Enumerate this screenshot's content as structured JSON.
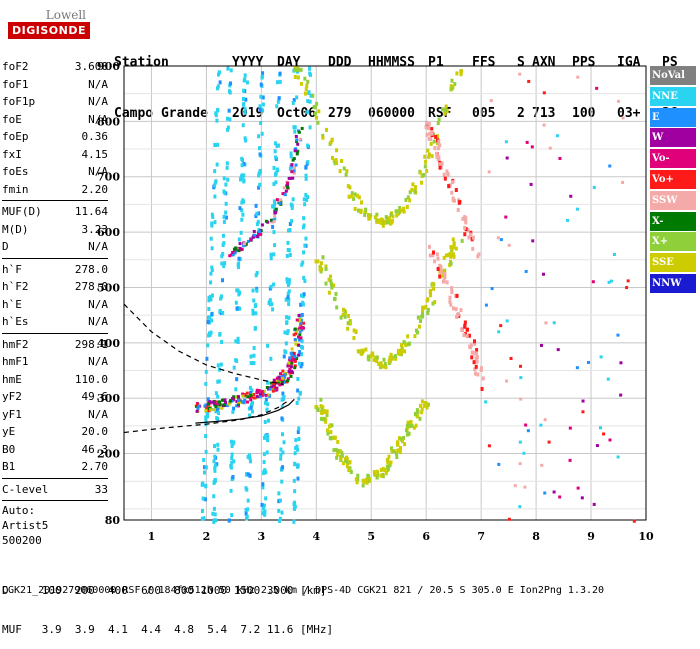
{
  "logo": {
    "line1": "Lowell",
    "line2": "DIGISONDE"
  },
  "header": {
    "row1": [
      "Station",
      "YYYY",
      "DAY",
      "DDD",
      "HHMMSS",
      "P1",
      "FFS",
      "S",
      "AXN",
      "PPS",
      "IGA",
      "PS"
    ],
    "row2": [
      "Campo Grande",
      "2019",
      "Oct06",
      "279",
      "060000",
      "RSF",
      "005",
      "2",
      "713",
      "100",
      "03+",
      "36"
    ]
  },
  "params_group1": [
    {
      "label": "foF2",
      "value": "3.600"
    },
    {
      "label": "foF1",
      "value": "N/A"
    },
    {
      "label": "foF1p",
      "value": "N/A"
    },
    {
      "label": "foE",
      "value": "N/A"
    },
    {
      "label": "foEp",
      "value": "0.36"
    },
    {
      "label": "fxI",
      "value": "4.15"
    },
    {
      "label": "foEs",
      "value": "N/A"
    },
    {
      "label": "fmin",
      "value": "2.20"
    }
  ],
  "params_group2": [
    {
      "label": "MUF(D)",
      "value": "11.64"
    },
    {
      "label": "M(D)",
      "value": "3.23"
    },
    {
      "label": "D",
      "value": "N/A"
    }
  ],
  "params_group3": [
    {
      "label": "h`F",
      "value": "278.0"
    },
    {
      "label": "h`F2",
      "value": "278.0"
    },
    {
      "label": "h`E",
      "value": "N/A"
    },
    {
      "label": "h`Es",
      "value": "N/A"
    }
  ],
  "params_group4": [
    {
      "label": "hmF2",
      "value": "298.1"
    },
    {
      "label": "hmF1",
      "value": "N/A"
    },
    {
      "label": "hmE",
      "value": "110.0"
    },
    {
      "label": "yF2",
      "value": "49.6"
    },
    {
      "label": "yF1",
      "value": "N/A"
    },
    {
      "label": "yE",
      "value": "20.0"
    },
    {
      "label": "B0",
      "value": "46.3"
    },
    {
      "label": "B1",
      "value": "2.70"
    }
  ],
  "params_group5": [
    {
      "label": "C-level",
      "value": "33"
    }
  ],
  "notes": [
    "Auto:",
    "Artist5",
    "500200"
  ],
  "legend": [
    {
      "label": "NoVal",
      "color": "#808080"
    },
    {
      "label": "NNE",
      "color": "#2ad4f0"
    },
    {
      "label": "E",
      "color": "#1e90ff"
    },
    {
      "label": "W",
      "color": "#a000a0"
    },
    {
      "label": "Vo-",
      "color": "#e0007a"
    },
    {
      "label": "Vo+",
      "color": "#ff1a1a"
    },
    {
      "label": "SSW",
      "color": "#f4aaa8"
    },
    {
      "label": "X-",
      "color": "#007a00"
    },
    {
      "label": "X+",
      "color": "#8fcf3a"
    },
    {
      "label": "SSE",
      "color": "#cccc00"
    },
    {
      "label": "NNW",
      "color": "#1a1ad0"
    }
  ],
  "footer": {
    "d_row": "D     100  200  400  600  800 1000 1500 3000 [km]",
    "muf_row": "MUF   3.9  3.9  4.1  4.4  4.8  5.4  7.2 11.6 [MHz]",
    "file_line": "CGK21_2019279060000.RSF / 184fx512h 50 kHz 2.5 km / DPS-4D CGK21 821 / 20.5 S 305.0 E Ion2Png 1.3.20"
  },
  "chart_data": {
    "type": "scatter",
    "title": "",
    "xlabel": "",
    "ylabel": "",
    "xlim": [
      0.5,
      10
    ],
    "ylim": [
      80,
      900
    ],
    "x_ticks": [
      1,
      2,
      3,
      4,
      5,
      6,
      7,
      8,
      9,
      10
    ],
    "y_ticks": [
      80,
      200,
      300,
      400,
      500,
      600,
      700,
      800,
      900
    ],
    "grid": true,
    "legend_position": "right",
    "profile_curve": [
      [
        1.8,
        255
      ],
      [
        2.2,
        258
      ],
      [
        2.6,
        262
      ],
      [
        3.0,
        268
      ],
      [
        3.3,
        278
      ],
      [
        3.5,
        288
      ],
      [
        3.6,
        298
      ]
    ],
    "dashed_trace_left": [
      [
        0.5,
        238
      ],
      [
        1.2,
        246
      ],
      [
        2.0,
        253
      ],
      [
        2.6,
        261
      ],
      [
        3.0,
        270
      ],
      [
        3.3,
        283
      ],
      [
        3.5,
        296
      ]
    ],
    "dashed_trace_upper": [
      [
        0.5,
        470
      ],
      [
        1.0,
        420
      ],
      [
        1.5,
        385
      ],
      [
        2.0,
        360
      ],
      [
        2.5,
        345
      ],
      [
        3.0,
        333
      ],
      [
        3.4,
        325
      ]
    ],
    "echo_trace_F2": [
      [
        1.8,
        285
      ],
      [
        2.2,
        290
      ],
      [
        2.6,
        300
      ],
      [
        3.0,
        312
      ],
      [
        3.3,
        330
      ],
      [
        3.5,
        355
      ],
      [
        3.6,
        390
      ],
      [
        3.7,
        450
      ]
    ],
    "echo_trace_F2_second": [
      [
        2.4,
        560
      ],
      [
        2.8,
        590
      ],
      [
        3.2,
        630
      ],
      [
        3.5,
        700
      ],
      [
        3.7,
        790
      ]
    ],
    "sse_waves": [
      [
        [
          3.6,
          900
        ],
        [
          4.0,
          820
        ],
        [
          4.4,
          720
        ],
        [
          4.8,
          640
        ],
        [
          5.2,
          620
        ],
        [
          5.6,
          650
        ],
        [
          6.0,
          730
        ],
        [
          6.3,
          820
        ],
        [
          6.6,
          900
        ]
      ],
      [
        [
          4.0,
          560
        ],
        [
          4.4,
          470
        ],
        [
          4.8,
          390
        ],
        [
          5.2,
          360
        ],
        [
          5.6,
          400
        ],
        [
          6.0,
          470
        ],
        [
          6.3,
          540
        ],
        [
          6.6,
          600
        ]
      ],
      [
        [
          4.0,
          300
        ],
        [
          4.4,
          200
        ],
        [
          4.8,
          150
        ],
        [
          5.2,
          170
        ],
        [
          5.6,
          240
        ],
        [
          6.0,
          300
        ]
      ]
    ],
    "ssw_traces": [
      [
        [
          6.0,
          800
        ],
        [
          6.3,
          720
        ],
        [
          6.6,
          640
        ],
        [
          6.9,
          560
        ]
      ],
      [
        [
          6.0,
          580
        ],
        [
          6.4,
          500
        ],
        [
          6.8,
          400
        ],
        [
          7.0,
          320
        ]
      ]
    ]
  }
}
